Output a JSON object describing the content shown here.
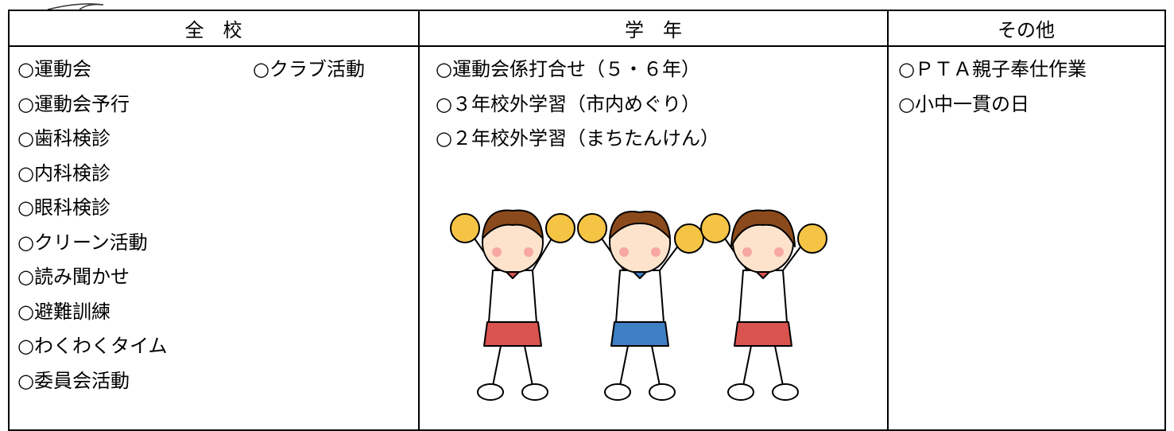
{
  "table": {
    "headers": [
      "全　校",
      "学　年",
      "その他"
    ],
    "columns": [
      [
        [
          "○運動会",
          "○クラブ活動"
        ],
        [
          "○運動会予行"
        ],
        [
          "○歯科検診"
        ],
        [
          "○内科検診"
        ],
        [
          "○眼科検診"
        ],
        [
          "○クリーン活動"
        ],
        [
          "○読み聞かせ"
        ],
        [
          "○避難訓練"
        ],
        [
          "○わくわくタイム"
        ],
        [
          "○委員会活動"
        ]
      ],
      [
        [
          "○運動会係打合せ（５・６年）"
        ],
        [
          "○３年校外学習（市内めぐり）"
        ],
        [
          "○２年校外学習（まちたんけん）"
        ]
      ],
      [
        [
          "○ＰＴＡ親子奉仕作業"
        ],
        [
          "○小中一貫の日"
        ]
      ]
    ]
  }
}
